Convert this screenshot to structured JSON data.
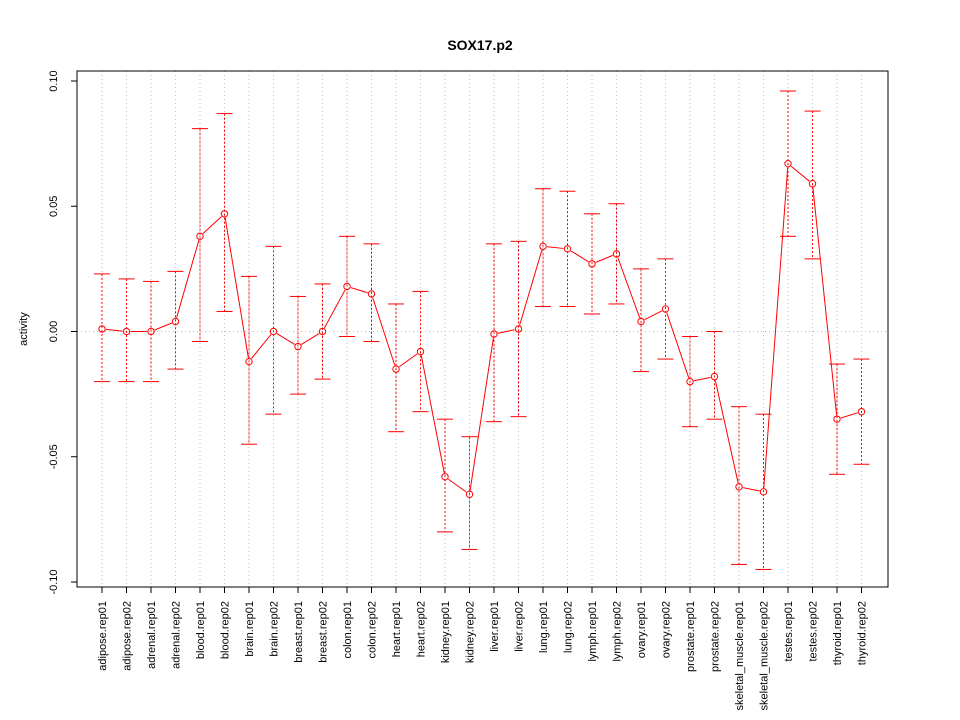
{
  "chart_data": {
    "type": "line",
    "title": "SOX17.p2",
    "xlabel": "",
    "ylabel": "activity",
    "ylim": [
      -0.102,
      0.104
    ],
    "yticks": [
      -0.1,
      -0.05,
      0.0,
      0.05,
      0.1
    ],
    "ytick_labels": [
      "-0.10",
      "-0.05",
      "0.00",
      "0.05",
      "0.10"
    ],
    "grid": true,
    "series_color": "#ff0000",
    "grid_color": "#bebebe",
    "categories": [
      "adipose.rep01",
      "adipose.rep02",
      "adrenal.rep01",
      "adrenal.rep02",
      "blood.rep01",
      "blood.rep02",
      "brain.rep01",
      "brain.rep02",
      "breast.rep01",
      "breast.rep02",
      "colon.rep01",
      "colon.rep02",
      "heart.rep01",
      "heart.rep02",
      "kidney.rep01",
      "kidney.rep02",
      "liver.rep01",
      "liver.rep02",
      "lung.rep01",
      "lung.rep02",
      "lymph.rep01",
      "lymph.rep02",
      "ovary.rep01",
      "ovary.rep02",
      "prostate.rep01",
      "prostate.rep02",
      "skeletal_muscle.rep01",
      "skeletal_muscle.rep02",
      "testes.rep01",
      "testes.rep02",
      "thyroid.rep01",
      "thyroid.rep02"
    ],
    "values": [
      0.001,
      0.0,
      0.0,
      0.004,
      0.038,
      0.047,
      -0.012,
      0.0,
      -0.006,
      0.0,
      0.018,
      0.015,
      -0.015,
      -0.008,
      -0.058,
      -0.065,
      -0.001,
      0.001,
      0.034,
      0.033,
      0.027,
      0.031,
      0.004,
      0.009,
      -0.02,
      -0.018,
      -0.062,
      -0.064,
      0.067,
      0.059,
      -0.035,
      -0.032
    ],
    "upper": [
      0.023,
      0.021,
      0.02,
      0.024,
      0.081,
      0.087,
      0.022,
      0.034,
      0.014,
      0.019,
      0.038,
      0.035,
      0.011,
      0.016,
      -0.035,
      -0.042,
      0.035,
      0.036,
      0.057,
      0.056,
      0.047,
      0.051,
      0.025,
      0.029,
      -0.002,
      0.0,
      -0.03,
      -0.033,
      0.096,
      0.088,
      -0.013,
      -0.011
    ],
    "lower": [
      -0.02,
      -0.02,
      -0.02,
      -0.015,
      -0.004,
      0.008,
      -0.045,
      -0.033,
      -0.025,
      -0.019,
      -0.002,
      -0.004,
      -0.04,
      -0.032,
      -0.08,
      -0.087,
      -0.036,
      -0.034,
      0.01,
      0.01,
      0.007,
      0.011,
      -0.016,
      -0.011,
      -0.038,
      -0.035,
      -0.093,
      -0.095,
      0.038,
      0.029,
      -0.057,
      -0.053
    ]
  }
}
